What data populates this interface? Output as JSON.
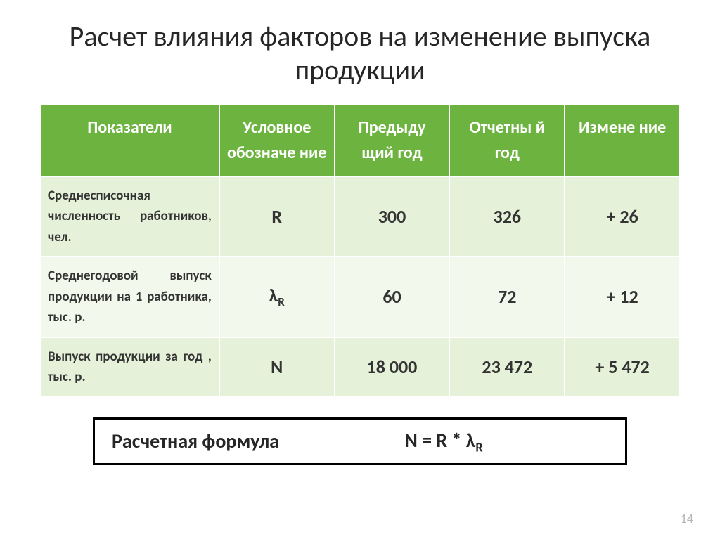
{
  "title": "Расчет влияния факторов на изменение выпуска продукции",
  "table": {
    "col_widths_pct": [
      28,
      18,
      18,
      18,
      18
    ],
    "header_bg": "#6db33f",
    "header_fg": "#ffffff",
    "row_bg_a": "#e5f1d9",
    "row_bg_b": "#f2f8ec",
    "columns": [
      "Показатели",
      "Условное обозначе ние",
      "Предыду щий год",
      "Отчетны й год",
      "Измене ние"
    ],
    "rows": [
      {
        "label": "Среднесписочная численность работников, чел.",
        "symbol": "R",
        "prev": "300",
        "curr": "326",
        "delta": "+ 26"
      },
      {
        "label": "Среднегодовой выпуск продукции на 1 работника, тыс. р.",
        "symbol_html": "λ<span class=\"sub\">R</span>",
        "prev": "60",
        "curr": "72",
        "delta": "+ 12"
      },
      {
        "label": "Выпуск продукции за год , тыс. р.",
        "symbol": "N",
        "prev": "18 000",
        "curr": "23 472",
        "delta": "+ 5 472"
      }
    ]
  },
  "formula": {
    "label": "Расчетная формула",
    "expr_html": "N = R * λ<span class=\"sub\">R</span>"
  },
  "page_number": "14"
}
